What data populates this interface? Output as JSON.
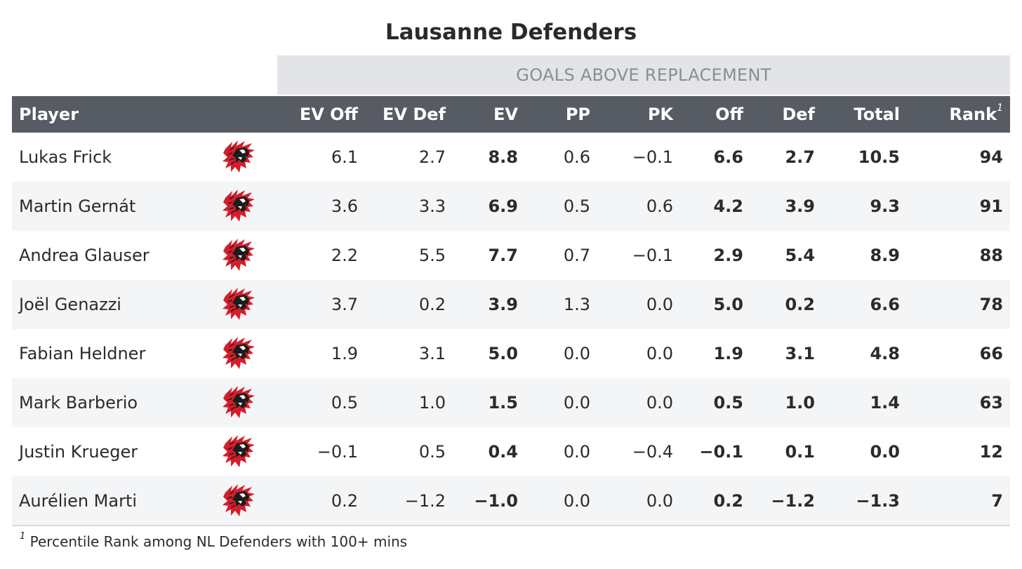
{
  "chart_data": {
    "type": "table",
    "title": "Lausanne Defenders",
    "group_header": "GOALS ABOVE REPLACEMENT",
    "columns": [
      "Player",
      "EV Off",
      "EV Def",
      "EV",
      "PP",
      "PK",
      "Off",
      "Def",
      "Total",
      "Rank"
    ],
    "rank_footnote_marker": "1",
    "rows": [
      {
        "player": "Lukas Frick",
        "ev_off": "6.1",
        "ev_def": "2.7",
        "ev": "8.8",
        "pp": "0.6",
        "pk": "−0.1",
        "off": "6.6",
        "def": "2.7",
        "total": "10.5",
        "rank": "94"
      },
      {
        "player": "Martin Gernát",
        "ev_off": "3.6",
        "ev_def": "3.3",
        "ev": "6.9",
        "pp": "0.5",
        "pk": "0.6",
        "off": "4.2",
        "def": "3.9",
        "total": "9.3",
        "rank": "91"
      },
      {
        "player": "Andrea Glauser",
        "ev_off": "2.2",
        "ev_def": "5.5",
        "ev": "7.7",
        "pp": "0.7",
        "pk": "−0.1",
        "off": "2.9",
        "def": "5.4",
        "total": "8.9",
        "rank": "88"
      },
      {
        "player": "Joël Genazzi",
        "ev_off": "3.7",
        "ev_def": "0.2",
        "ev": "3.9",
        "pp": "1.3",
        "pk": "0.0",
        "off": "5.0",
        "def": "0.2",
        "total": "6.6",
        "rank": "78"
      },
      {
        "player": "Fabian Heldner",
        "ev_off": "1.9",
        "ev_def": "3.1",
        "ev": "5.0",
        "pp": "0.0",
        "pk": "0.0",
        "off": "1.9",
        "def": "3.1",
        "total": "4.8",
        "rank": "66"
      },
      {
        "player": "Mark Barberio",
        "ev_off": "0.5",
        "ev_def": "1.0",
        "ev": "1.5",
        "pp": "0.0",
        "pk": "0.0",
        "off": "0.5",
        "def": "1.0",
        "total": "1.4",
        "rank": "63"
      },
      {
        "player": "Justin Krueger",
        "ev_off": "−0.1",
        "ev_def": "0.5",
        "ev": "0.4",
        "pp": "0.0",
        "pk": "−0.4",
        "off": "−0.1",
        "def": "0.1",
        "total": "0.0",
        "rank": "12"
      },
      {
        "player": "Aurélien Marti",
        "ev_off": "0.2",
        "ev_def": "−1.2",
        "ev": "−1.0",
        "pp": "0.0",
        "pk": "0.0",
        "off": "0.2",
        "def": "−1.2",
        "total": "−1.3",
        "rank": "7"
      }
    ],
    "footnote_marker": "1",
    "footnote": "Percentile Rank among NL Defenders with 100+ mins"
  },
  "team_logo_icon": "lausanne-lion-logo-icon",
  "colors": {
    "header_bg": "#575b63",
    "spanner_bg": "#e2e4e8",
    "logo_red": "#d41e2c"
  }
}
